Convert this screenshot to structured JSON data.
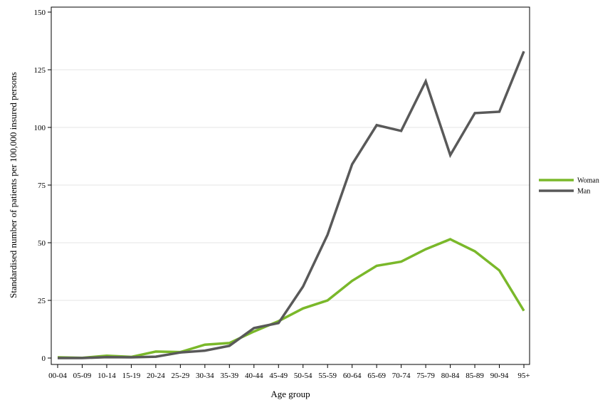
{
  "chart_data": {
    "type": "line",
    "title": "",
    "xlabel": "Age group",
    "ylabel": "Standardised number of patients per 100,000 insured persons",
    "categories": [
      "00-04",
      "05-09",
      "10-14",
      "15-19",
      "20-24",
      "25-29",
      "30-34",
      "35-39",
      "40-44",
      "45-49",
      "50-54",
      "55-59",
      "60-64",
      "65-69",
      "70-74",
      "75-79",
      "80-84",
      "85-89",
      "90-94",
      "95+"
    ],
    "ylim": [
      0,
      150
    ],
    "yticks": [
      0,
      25,
      50,
      75,
      100,
      125,
      150
    ],
    "grid": true,
    "legend_position": "right",
    "series": [
      {
        "name": "Woman",
        "color": "#7ab82a",
        "values": [
          0.3,
          0.1,
          1.0,
          0.5,
          2.8,
          2.6,
          5.8,
          6.5,
          11.5,
          16.0,
          21.5,
          25.0,
          33.5,
          40.0,
          41.8,
          47.2,
          51.5,
          46.3,
          38.0,
          20.5
        ]
      },
      {
        "name": "Man",
        "color": "#595959",
        "values": [
          0.0,
          0.0,
          0.4,
          0.3,
          0.6,
          2.4,
          3.2,
          5.3,
          13.0,
          15.2,
          31.0,
          53.5,
          84.0,
          101.0,
          98.5,
          120.0,
          88.0,
          106.2,
          106.8,
          133.0
        ]
      }
    ]
  }
}
